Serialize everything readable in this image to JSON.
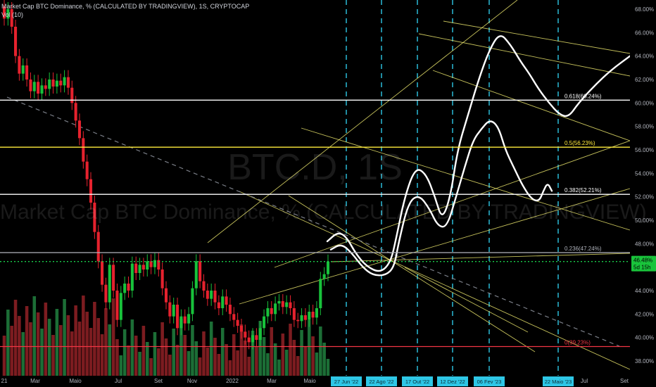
{
  "header": {
    "title": "Market Cap BTC Dominance, % (CALCULATED BY TRADINGVIEW), 1S, CRYPTOCAP",
    "volume": "Vol (10)"
  },
  "watermark": {
    "symbol": "BTC.D, 1S",
    "name": "Market Cap BTC Dominance, % (CALCULATED BY TRADINGVIEW)"
  },
  "chart_data": {
    "type": "candlestick",
    "y_axis": {
      "ticks": [
        "38.00%",
        "40.00%",
        "42.00%",
        "44.00%",
        "46.00%",
        "48.00%",
        "50.00%",
        "52.00%",
        "54.00%",
        "56.00%",
        "58.00%",
        "60.00%",
        "62.00%",
        "64.00%",
        "66.00%",
        "68.00%"
      ],
      "range": [
        37,
        69
      ]
    },
    "x_axis": {
      "ticks": [
        "21",
        "Mar",
        "Maio",
        "Jul",
        "Set",
        "Nov",
        "2022",
        "Mar",
        "Maio",
        "Jul",
        "Set"
      ]
    },
    "price_label": {
      "value": "46.48%",
      "countdown": "5d 15h"
    },
    "current_price": 46.48,
    "fibonacci": [
      {
        "label": "0.618(60.24%)",
        "value": 60.24,
        "color": "#ffffff"
      },
      {
        "label": "0.5(56.23%)",
        "value": 56.23,
        "color": "#ffeb3b"
      },
      {
        "label": "0.382(52.21%)",
        "value": 52.21,
        "color": "#ffffff"
      },
      {
        "label": "0.236(47.24%)",
        "value": 47.24,
        "color": "#b2b5be"
      },
      {
        "label": "0(39.23%)",
        "value": 39.23,
        "color": "#f23645"
      }
    ],
    "date_markers": [
      "27 Jun '22",
      "22 Ago '22",
      "17 Out '22",
      "12 Dez '22",
      "06 Fev '23",
      "22 Maio '23"
    ],
    "candles_approx": [
      {
        "o": 68.2,
        "c": 67.2
      },
      {
        "o": 67.2,
        "c": 68.0
      },
      {
        "o": 68.0,
        "c": 66.5
      },
      {
        "o": 66.5,
        "c": 64.0
      },
      {
        "o": 64.0,
        "c": 62.5
      },
      {
        "o": 62.5,
        "c": 63.2
      },
      {
        "o": 63.2,
        "c": 62.0
      },
      {
        "o": 62.0,
        "c": 61.0
      },
      {
        "o": 61.0,
        "c": 61.8
      },
      {
        "o": 61.8,
        "c": 60.8
      },
      {
        "o": 60.8,
        "c": 61.5
      },
      {
        "o": 61.5,
        "c": 61.2
      },
      {
        "o": 61.2,
        "c": 62.0
      },
      {
        "o": 62.0,
        "c": 61.4
      },
      {
        "o": 61.4,
        "c": 61.9
      },
      {
        "o": 61.9,
        "c": 61.5
      },
      {
        "o": 61.5,
        "c": 62.2
      },
      {
        "o": 62.2,
        "c": 61.3
      },
      {
        "o": 61.3,
        "c": 60.0
      },
      {
        "o": 60.0,
        "c": 58.5
      },
      {
        "o": 58.5,
        "c": 57.0
      },
      {
        "o": 57.0,
        "c": 55.0
      },
      {
        "o": 55.0,
        "c": 53.5
      },
      {
        "o": 53.5,
        "c": 51.5
      },
      {
        "o": 51.5,
        "c": 49.0
      },
      {
        "o": 49.0,
        "c": 46.5
      },
      {
        "o": 46.5,
        "c": 44.5
      },
      {
        "o": 44.5,
        "c": 43.0
      },
      {
        "o": 43.0,
        "c": 46.2
      },
      {
        "o": 46.2,
        "c": 44.0
      },
      {
        "o": 44.0,
        "c": 41.5
      },
      {
        "o": 41.5,
        "c": 43.8
      },
      {
        "o": 43.8,
        "c": 44.6
      },
      {
        "o": 44.6,
        "c": 44.0
      },
      {
        "o": 44.0,
        "c": 46.3
      },
      {
        "o": 46.3,
        "c": 45.5
      },
      {
        "o": 45.5,
        "c": 46.2
      },
      {
        "o": 46.2,
        "c": 45.8
      },
      {
        "o": 45.8,
        "c": 46.5
      },
      {
        "o": 46.5,
        "c": 46.0
      },
      {
        "o": 46.0,
        "c": 46.6
      },
      {
        "o": 46.6,
        "c": 45.8
      },
      {
        "o": 45.8,
        "c": 44.2
      },
      {
        "o": 44.2,
        "c": 43.0
      },
      {
        "o": 43.0,
        "c": 41.8
      },
      {
        "o": 41.8,
        "c": 42.8
      },
      {
        "o": 42.8,
        "c": 40.8
      },
      {
        "o": 40.8,
        "c": 41.8
      },
      {
        "o": 41.8,
        "c": 41.2
      },
      {
        "o": 41.2,
        "c": 42.0
      },
      {
        "o": 42.0,
        "c": 44.2
      },
      {
        "o": 44.2,
        "c": 46.5
      },
      {
        "o": 46.5,
        "c": 44.8
      },
      {
        "o": 44.8,
        "c": 44.0
      },
      {
        "o": 44.0,
        "c": 43.3
      },
      {
        "o": 43.3,
        "c": 44.0
      },
      {
        "o": 44.0,
        "c": 43.0
      },
      {
        "o": 43.0,
        "c": 42.5
      },
      {
        "o": 42.5,
        "c": 43.5
      },
      {
        "o": 43.5,
        "c": 42.8
      },
      {
        "o": 42.8,
        "c": 42.0
      },
      {
        "o": 42.0,
        "c": 41.5
      },
      {
        "o": 41.5,
        "c": 41.0
      },
      {
        "o": 41.0,
        "c": 40.5
      },
      {
        "o": 40.5,
        "c": 40.0
      },
      {
        "o": 40.0,
        "c": 39.6
      },
      {
        "o": 39.6,
        "c": 40.2
      },
      {
        "o": 40.2,
        "c": 39.8
      },
      {
        "o": 39.8,
        "c": 40.8
      },
      {
        "o": 40.8,
        "c": 41.8
      },
      {
        "o": 41.8,
        "c": 42.5
      },
      {
        "o": 42.5,
        "c": 42.0
      },
      {
        "o": 42.0,
        "c": 42.9
      },
      {
        "o": 42.9,
        "c": 43.1
      },
      {
        "o": 43.1,
        "c": 42.6
      },
      {
        "o": 42.6,
        "c": 43.0
      },
      {
        "o": 43.0,
        "c": 42.5
      },
      {
        "o": 42.5,
        "c": 41.5
      },
      {
        "o": 41.5,
        "c": 41.4
      },
      {
        "o": 41.4,
        "c": 41.9
      },
      {
        "o": 41.9,
        "c": 41.5
      },
      {
        "o": 41.5,
        "c": 42.2
      },
      {
        "o": 42.2,
        "c": 41.7
      },
      {
        "o": 41.7,
        "c": 42.5
      },
      {
        "o": 42.5,
        "c": 45.0
      },
      {
        "o": 45.0,
        "c": 45.4
      },
      {
        "o": 45.4,
        "c": 46.48
      }
    ],
    "projection_a": [
      [
        465,
        48.2
      ],
      [
        480,
        49.0
      ],
      [
        492,
        48.6
      ],
      [
        505,
        47.2
      ],
      [
        520,
        46.1
      ],
      [
        540,
        45.5
      ],
      [
        555,
        46.4
      ],
      [
        563,
        48.5
      ],
      [
        575,
        52.0
      ],
      [
        590,
        54.5
      ],
      [
        605,
        54.0
      ],
      [
        618,
        52.0
      ],
      [
        628,
        50.0
      ],
      [
        640,
        52.0
      ],
      [
        650,
        56.0
      ],
      [
        665,
        59.0
      ],
      [
        680,
        62.0
      ],
      [
        695,
        64.5
      ],
      [
        710,
        66.0
      ],
      [
        725,
        65.0
      ],
      [
        740,
        63.5
      ],
      [
        752,
        62.5
      ],
      [
        765,
        61.2
      ],
      [
        780,
        60.0
      ],
      [
        795,
        59.0
      ],
      [
        808,
        58.8
      ],
      [
        822,
        60.0
      ],
      [
        845,
        61.5
      ],
      [
        868,
        62.8
      ],
      [
        895,
        64.0
      ]
    ],
    "projection_b": [
      [
        470,
        47.5
      ],
      [
        485,
        48.0
      ],
      [
        500,
        47.2
      ],
      [
        515,
        46.0
      ],
      [
        530,
        45.3
      ],
      [
        548,
        45.3
      ],
      [
        560,
        46.0
      ],
      [
        566,
        48.0
      ],
      [
        580,
        51.5
      ],
      [
        595,
        52.2
      ],
      [
        610,
        51.0
      ],
      [
        622,
        49.5
      ],
      [
        635,
        49.4
      ],
      [
        648,
        52.0
      ],
      [
        660,
        54.5
      ],
      [
        672,
        56.8
      ],
      [
        684,
        57.8
      ],
      [
        696,
        58.6
      ],
      [
        708,
        58.0
      ],
      [
        718,
        56.0
      ],
      [
        730,
        54.5
      ],
      [
        742,
        53.0
      ],
      [
        755,
        51.8
      ],
      [
        766,
        51.6
      ],
      [
        772,
        52.5
      ],
      [
        778,
        53.2
      ],
      [
        784,
        52.5
      ]
    ]
  }
}
